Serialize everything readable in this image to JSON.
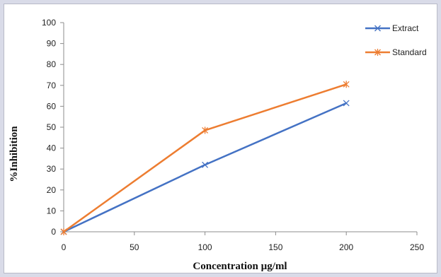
{
  "chart_data": {
    "type": "line",
    "xlabel": "Concentration  µg/ml",
    "ylabel": "%Inhibition",
    "xlim": [
      0,
      250
    ],
    "ylim": [
      0,
      100
    ],
    "x_ticks": [
      "0",
      "50",
      "100",
      "150",
      "200",
      "250"
    ],
    "y_ticks": [
      "0",
      "10",
      "20",
      "30",
      "40",
      "50",
      "60",
      "70",
      "80",
      "90",
      "100"
    ],
    "grid": false,
    "legend_position": "top-right",
    "series": [
      {
        "name": "Extract",
        "color": "#4472c4",
        "marker": "x",
        "x": [
          0,
          100,
          200
        ],
        "y": [
          0,
          32,
          61.5
        ]
      },
      {
        "name": "Standard",
        "color": "#ed7d31",
        "marker": "asterisk",
        "x": [
          0,
          100,
          200
        ],
        "y": [
          0,
          48.5,
          70.5
        ]
      }
    ]
  }
}
